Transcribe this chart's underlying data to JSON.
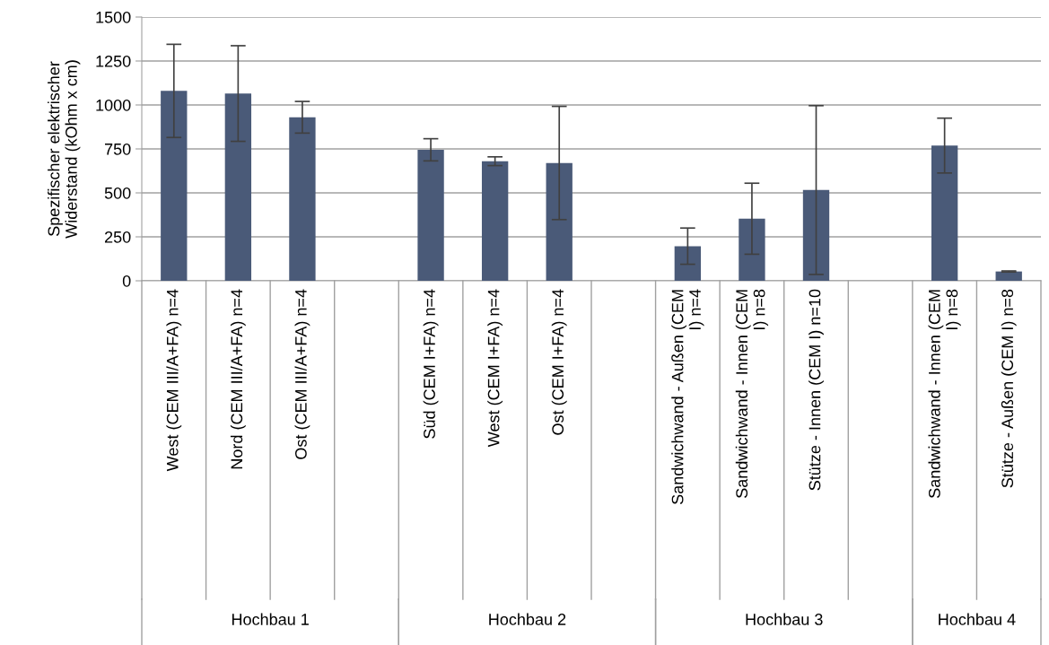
{
  "chart_data": {
    "type": "bar",
    "ylabel": "Spezifischer elektrischer\nWiderstand (kOhm x cm)",
    "categories": [
      "West (CEM III/A+FA) n=4",
      "Nord (CEM III/A+FA) n=4",
      "Ost (CEM III/A+FA) n=4",
      null,
      "Süd (CEM I+FA) n=4",
      "West (CEM I+FA) n=4",
      "Ost (CEM I+FA) n=4",
      null,
      "Sandwichwand - Außen (CEM\nI) n=4",
      "Sandwichwand - Innen (CEM\nI) n=8",
      "Stütze - Innen (CEM I) n=10",
      null,
      "Sandwichwand - Innen (CEM\nI) n=8",
      "Stütze - Außen (CEM I) n=8"
    ],
    "values": [
      1080,
      1065,
      930,
      null,
      745,
      680,
      670,
      null,
      197,
      353,
      516,
      null,
      769,
      53
    ],
    "errors": [
      265,
      272,
      90,
      null,
      63,
      25,
      322,
      null,
      103,
      202,
      480,
      null,
      156,
      3
    ],
    "color": "#4a5a78",
    "ylim": [
      0,
      1500
    ],
    "yticks": [
      0,
      250,
      500,
      750,
      1000,
      1250,
      1500
    ],
    "grid": "y",
    "annotations": [
      "Hochbau 1",
      "Hochbau 2",
      "Hochbau 3",
      "Hochbau 4"
    ]
  }
}
